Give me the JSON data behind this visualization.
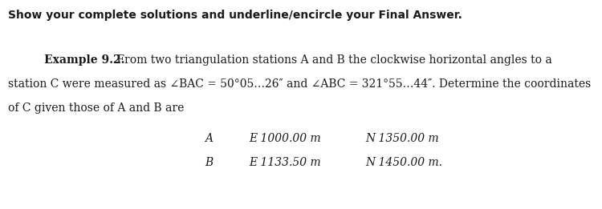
{
  "header": "Show your complete solutions and underline/encircle your Final Answer.",
  "header_fontsize": 10.0,
  "body_fontsize": 10.0,
  "table_fontsize": 10.0,
  "line1_bold": "Example 9.2.",
  "line1_rest": " From two triangulation stations A and B the clockwise horizontal angles to a",
  "line2": "station C were measured as ∠BAC = 50°05…26″ and ∠ABC = 321°55…44″. Determine the coordinates",
  "line3": "of C given those of A and B are",
  "table_A_label": "A",
  "table_B_label": "B",
  "table_A_E": "E 1000.00 m",
  "table_A_N": "N 1350.00 m",
  "table_B_E": "E 1133.50 m",
  "table_B_N": "N 1450.00 m.",
  "bg_color": "#ffffff",
  "text_color": "#1a1a1a",
  "fig_width": 7.5,
  "fig_height": 2.61,
  "dpi": 100
}
